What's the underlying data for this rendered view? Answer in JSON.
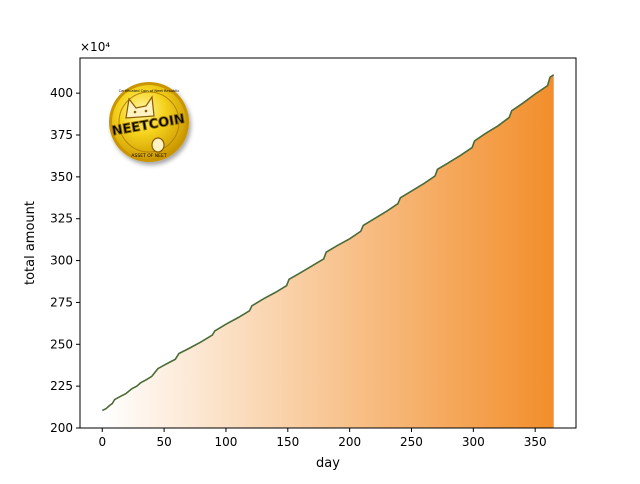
{
  "chart_data": {
    "type": "area",
    "xlabel": "day",
    "ylabel": "total amount",
    "offset_text": "×10⁴",
    "xlim": [
      -18,
      383
    ],
    "ylim": [
      200,
      421
    ],
    "x_ticks": [
      0,
      50,
      100,
      150,
      200,
      250,
      300,
      350
    ],
    "y_ticks": [
      200,
      225,
      250,
      275,
      300,
      325,
      350,
      375,
      400
    ],
    "series": [
      {
        "x": [
          0,
          3,
          6,
          8,
          10,
          15,
          19,
          24,
          28,
          31,
          36,
          40,
          45,
          50,
          55,
          59,
          62,
          70,
          80,
          89,
          91,
          100,
          110,
          119,
          121,
          130,
          140,
          149,
          151,
          160,
          170,
          179,
          181,
          190,
          200,
          209,
          211,
          220,
          230,
          239,
          241,
          250,
          260,
          269,
          271,
          280,
          290,
          299,
          301,
          310,
          320,
          329,
          331,
          340,
          350,
          360,
          362,
          365
        ],
        "y": [
          210.5,
          211.5,
          213.5,
          214.5,
          217,
          219,
          220.5,
          223.5,
          225,
          227,
          229,
          230.8,
          235.5,
          237.5,
          239.5,
          241,
          244.5,
          247.5,
          251.5,
          255.5,
          258,
          262,
          266,
          270,
          273,
          277,
          281,
          285,
          288.8,
          292.6,
          297,
          301,
          305,
          309,
          313,
          317.5,
          321,
          325,
          329.5,
          334,
          337.5,
          341.5,
          346,
          350.5,
          354.5,
          358.5,
          363,
          367.5,
          371.5,
          376,
          380.5,
          385.5,
          389.5,
          394,
          399.5,
          404.5,
          409.5,
          411
        ]
      }
    ],
    "line_color": "#4a6b38",
    "fill_color_start": "#ffffff",
    "fill_color_end": "#f28e2b",
    "grid": false,
    "legend": false
  },
  "logo": {
    "text": "NEETCOIN",
    "ring_text": "Certificated Coin of Neet Republic",
    "bottom_text": "ASSET OF NEET"
  }
}
